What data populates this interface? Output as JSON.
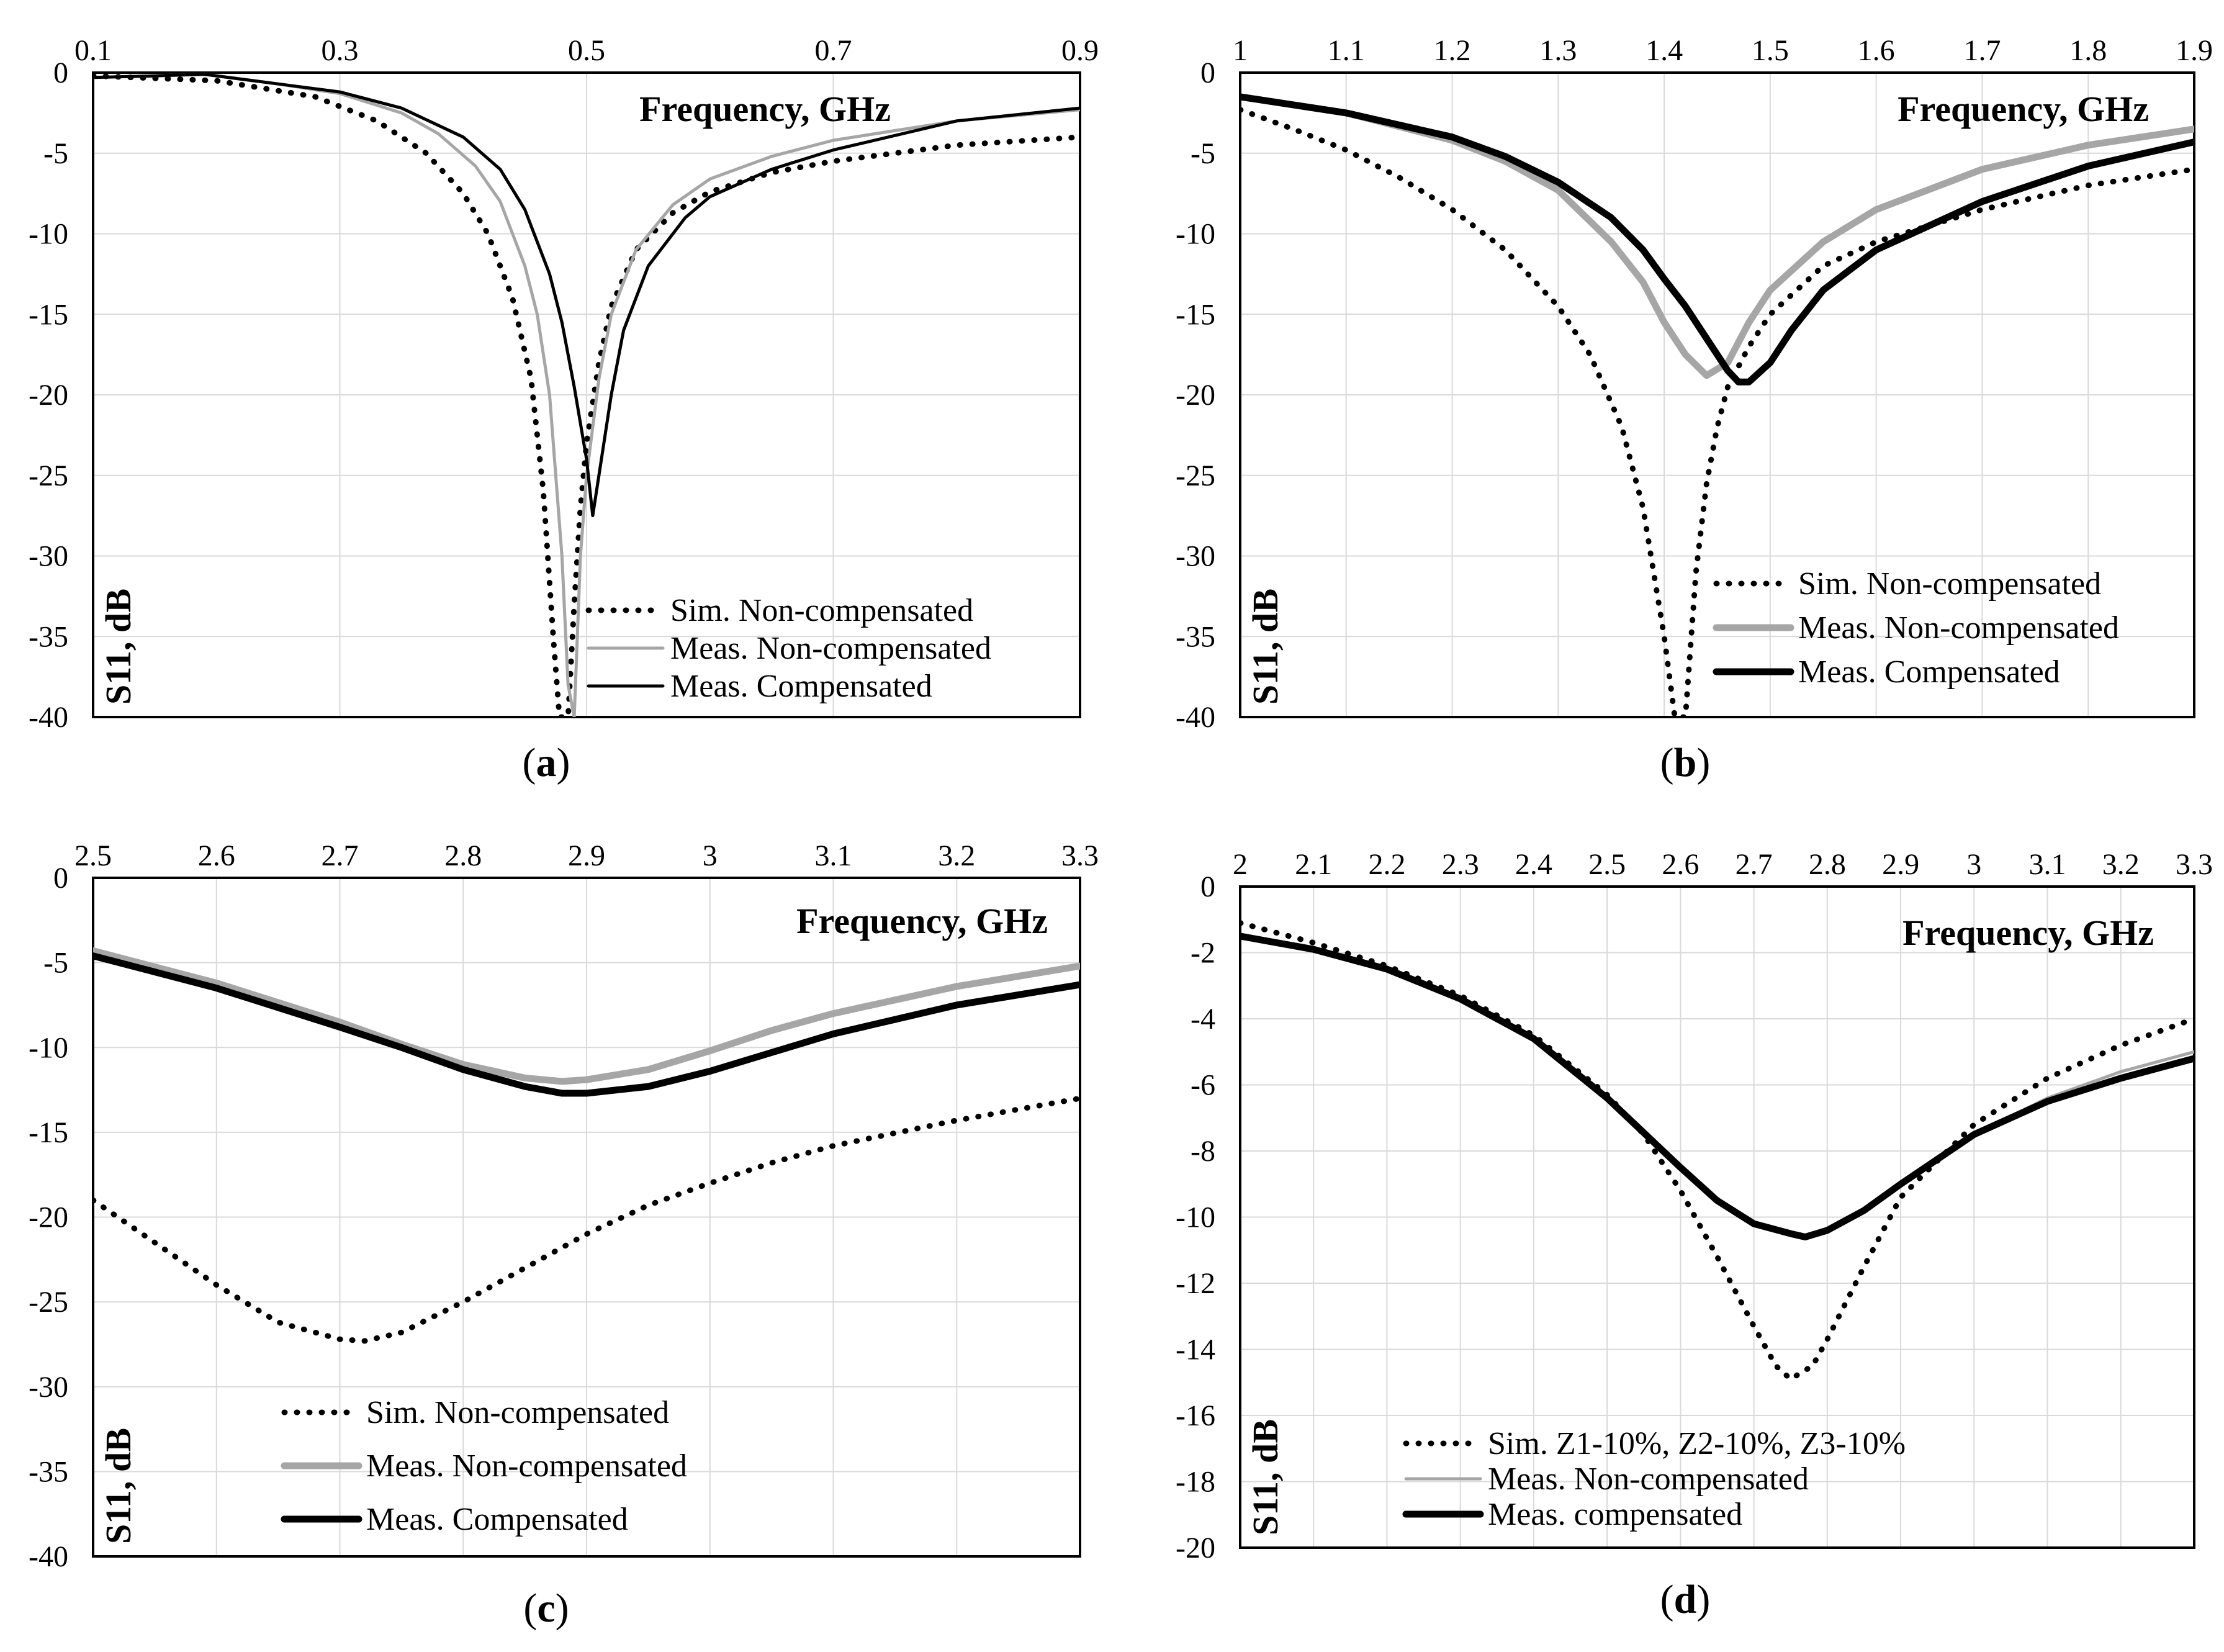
{
  "chart_data": [
    {
      "type": "line",
      "panel_label": "a",
      "xlabel": "Frequency, GHz",
      "ylabel": "S11, dB",
      "xlim": [
        0.1,
        0.9
      ],
      "ylim": [
        -40,
        0
      ],
      "xticks": [
        0.1,
        0.3,
        0.5,
        0.7,
        0.9
      ],
      "xtick_labels": [
        "0.1",
        "0.3",
        "0.5",
        "0.7",
        "0.9"
      ],
      "yticks": [
        0,
        -5,
        -10,
        -15,
        -20,
        -25,
        -30,
        -35,
        -40
      ],
      "ytick_labels": [
        "0",
        "-5",
        "-10",
        "-15",
        "-20",
        "-25",
        "-30",
        "-35",
        "-40"
      ],
      "grid": true,
      "legend_position": "bottom-right",
      "series": [
        {
          "name": "Sim. Non-compensated",
          "style": "dotted",
          "color": "#000000",
          "x": [
            0.1,
            0.2,
            0.28,
            0.33,
            0.37,
            0.4,
            0.42,
            0.44,
            0.455,
            0.465,
            0.473,
            0.478,
            0.48,
            0.485,
            0.49,
            0.495,
            0.5,
            0.51,
            0.52,
            0.54,
            0.57,
            0.6,
            0.65,
            0.7,
            0.8,
            0.9
          ],
          "y": [
            -0.2,
            -0.5,
            -1.5,
            -3,
            -5,
            -7.5,
            -10,
            -14,
            -19,
            -26,
            -35,
            -40,
            -40,
            -40,
            -33,
            -27,
            -23,
            -18,
            -14.5,
            -11,
            -8.7,
            -7.4,
            -6.2,
            -5.5,
            -4.5,
            -4
          ]
        },
        {
          "name": "Meas. Non-compensated",
          "style": "solid-thin",
          "color": "#a6a6a6",
          "x": [
            0.1,
            0.15,
            0.19,
            0.25,
            0.3,
            0.35,
            0.38,
            0.41,
            0.43,
            0.45,
            0.46,
            0.47,
            0.48,
            0.485,
            0.49,
            0.495,
            0.5,
            0.51,
            0.52,
            0.54,
            0.57,
            0.6,
            0.65,
            0.7,
            0.8,
            0.9
          ],
          "y": [
            -0.3,
            -0.2,
            -0.1,
            -0.7,
            -1.3,
            -2.5,
            -3.8,
            -5.8,
            -8,
            -12,
            -15,
            -20,
            -30,
            -38,
            -40,
            -30,
            -25,
            -19,
            -15,
            -11,
            -8.2,
            -6.6,
            -5.2,
            -4.2,
            -3,
            -2.3
          ]
        },
        {
          "name": "Meas. Compensated",
          "style": "solid-thin",
          "color": "#000000",
          "x": [
            0.1,
            0.15,
            0.19,
            0.25,
            0.3,
            0.35,
            0.4,
            0.43,
            0.45,
            0.47,
            0.48,
            0.49,
            0.5,
            0.505,
            0.51,
            0.52,
            0.53,
            0.55,
            0.58,
            0.6,
            0.65,
            0.7,
            0.8,
            0.9
          ],
          "y": [
            -0.3,
            -0.2,
            -0.1,
            -0.7,
            -1.2,
            -2.2,
            -4,
            -6,
            -8.5,
            -12.5,
            -15.5,
            -19.5,
            -24,
            -27.5,
            -25,
            -20,
            -16,
            -12,
            -9,
            -7.7,
            -6,
            -4.8,
            -3,
            -2.2
          ]
        }
      ]
    },
    {
      "type": "line",
      "panel_label": "b",
      "xlabel": "Frequency, GHz",
      "ylabel": "S11, dB",
      "xlim": [
        1,
        1.9
      ],
      "ylim": [
        -40,
        0
      ],
      "xticks": [
        1,
        1.1,
        1.2,
        1.3,
        1.4,
        1.5,
        1.6,
        1.7,
        1.8,
        1.9
      ],
      "xtick_labels": [
        "1",
        "1.1",
        "1.2",
        "1.3",
        "1.4",
        "1.5",
        "1.6",
        "1.7",
        "1.8",
        "1.9"
      ],
      "yticks": [
        0,
        -5,
        -10,
        -15,
        -20,
        -25,
        -30,
        -35,
        -40
      ],
      "ytick_labels": [
        "0",
        "-5",
        "-10",
        "-15",
        "-20",
        "-25",
        "-30",
        "-35",
        "-40"
      ],
      "grid": true,
      "legend_position": "bottom-right",
      "series": [
        {
          "name": "Sim. Non-compensated",
          "style": "dotted",
          "color": "#000000",
          "x": [
            1.0,
            1.05,
            1.1,
            1.15,
            1.2,
            1.25,
            1.3,
            1.33,
            1.36,
            1.38,
            1.4,
            1.41,
            1.42,
            1.43,
            1.44,
            1.45,
            1.46,
            1.48,
            1.5,
            1.55,
            1.6,
            1.7,
            1.8,
            1.9
          ],
          "y": [
            -2.3,
            -3.5,
            -4.8,
            -6.5,
            -8.5,
            -11,
            -14.5,
            -17.5,
            -22,
            -27,
            -35,
            -40,
            -40,
            -31,
            -25.5,
            -22,
            -19.5,
            -17,
            -15,
            -12,
            -10.5,
            -8.5,
            -7,
            -6
          ]
        },
        {
          "name": "Meas. Non-compensated",
          "style": "solid-thick",
          "color": "#a6a6a6",
          "x": [
            1.0,
            1.1,
            1.2,
            1.25,
            1.3,
            1.35,
            1.38,
            1.4,
            1.42,
            1.44,
            1.46,
            1.48,
            1.5,
            1.55,
            1.6,
            1.7,
            1.8,
            1.9
          ],
          "y": [
            -1.5,
            -2.5,
            -4.2,
            -5.5,
            -7.3,
            -10.5,
            -13,
            -15.5,
            -17.5,
            -18.8,
            -18,
            -15.5,
            -13.5,
            -10.5,
            -8.5,
            -6,
            -4.5,
            -3.5
          ]
        },
        {
          "name": "Meas. Compensated",
          "style": "solid-thick",
          "color": "#000000",
          "x": [
            1.0,
            1.1,
            1.2,
            1.25,
            1.3,
            1.35,
            1.38,
            1.4,
            1.42,
            1.44,
            1.46,
            1.47,
            1.48,
            1.5,
            1.52,
            1.55,
            1.6,
            1.7,
            1.8,
            1.9
          ],
          "y": [
            -1.5,
            -2.5,
            -4,
            -5.2,
            -6.8,
            -9,
            -11,
            -12.8,
            -14.5,
            -16.5,
            -18.5,
            -19.2,
            -19.2,
            -18,
            -16,
            -13.5,
            -11,
            -8,
            -5.8,
            -4.3
          ]
        }
      ]
    },
    {
      "type": "line",
      "panel_label": "c",
      "xlabel": "Frequency, GHz",
      "ylabel": "S11, dB",
      "xlim": [
        2.5,
        3.3
      ],
      "ylim": [
        -40,
        0
      ],
      "xticks": [
        2.5,
        2.6,
        2.7,
        2.8,
        2.9,
        3.0,
        3.1,
        3.2,
        3.3
      ],
      "xtick_labels": [
        "2.5",
        "2.6",
        "2.7",
        "2.8",
        "2.9",
        "3",
        "3.1",
        "3.2",
        "3.3"
      ],
      "yticks": [
        0,
        -5,
        -10,
        -15,
        -20,
        -25,
        -30,
        -35,
        -40
      ],
      "ytick_labels": [
        "0",
        "-5",
        "-10",
        "-15",
        "-20",
        "-25",
        "-30",
        "-35",
        "-40"
      ],
      "grid": true,
      "legend_position": "bottom-center",
      "series": [
        {
          "name": "Sim. Non-compensated",
          "style": "dotted",
          "color": "#000000",
          "x": [
            2.5,
            2.55,
            2.6,
            2.65,
            2.7,
            2.72,
            2.75,
            2.8,
            2.85,
            2.9,
            2.95,
            3.0,
            3.05,
            3.1,
            3.2,
            3.3
          ],
          "y": [
            -19,
            -21.5,
            -24,
            -26.2,
            -27.2,
            -27.3,
            -26.8,
            -25,
            -23,
            -21,
            -19.3,
            -18,
            -16.8,
            -15.8,
            -14.3,
            -13
          ]
        },
        {
          "name": "Meas. Non-compensated",
          "style": "solid-thick",
          "color": "#a6a6a6",
          "x": [
            2.5,
            2.6,
            2.7,
            2.75,
            2.8,
            2.85,
            2.88,
            2.9,
            2.95,
            3.0,
            3.05,
            3.1,
            3.2,
            3.3
          ],
          "y": [
            -4.3,
            -6.2,
            -8.5,
            -9.8,
            -11,
            -11.8,
            -12,
            -11.9,
            -11.3,
            -10.2,
            -9,
            -8,
            -6.4,
            -5.2
          ]
        },
        {
          "name": "Meas. Compensated",
          "style": "solid-thick",
          "color": "#000000",
          "x": [
            2.5,
            2.6,
            2.7,
            2.75,
            2.8,
            2.85,
            2.88,
            2.9,
            2.95,
            3.0,
            3.05,
            3.1,
            3.2,
            3.3
          ],
          "y": [
            -4.6,
            -6.5,
            -8.8,
            -10,
            -11.3,
            -12.3,
            -12.7,
            -12.7,
            -12.3,
            -11.4,
            -10.3,
            -9.2,
            -7.5,
            -6.3
          ]
        }
      ]
    },
    {
      "type": "line",
      "panel_label": "d",
      "xlabel": "Frequency, GHz",
      "ylabel": "S11, dB",
      "xlim": [
        2,
        3.3
      ],
      "ylim": [
        -20,
        0
      ],
      "xticks": [
        2,
        2.1,
        2.2,
        2.3,
        2.4,
        2.5,
        2.6,
        2.7,
        2.8,
        2.9,
        3.0,
        3.1,
        3.2,
        3.3
      ],
      "xtick_labels": [
        "2",
        "2.1",
        "2.2",
        "2.3",
        "2.4",
        "2.5",
        "2.6",
        "2.7",
        "2.8",
        "2.9",
        "3",
        "3.1",
        "3.2",
        "3.3"
      ],
      "yticks": [
        0,
        -2,
        -4,
        -6,
        -8,
        -10,
        -12,
        -14,
        -16,
        -18,
        -20
      ],
      "ytick_labels": [
        "0",
        "-2",
        "-4",
        "-6",
        "-8",
        "-10",
        "-12",
        "-14",
        "-16",
        "-18",
        "-20"
      ],
      "grid": true,
      "legend_position": "bottom-right",
      "series": [
        {
          "name": "Sim. Z1-10%, Z2-10%, Z3-10%",
          "style": "dotted",
          "color": "#000000",
          "x": [
            2.0,
            2.1,
            2.2,
            2.3,
            2.4,
            2.5,
            2.55,
            2.6,
            2.65,
            2.7,
            2.73,
            2.75,
            2.78,
            2.8,
            2.85,
            2.9,
            3.0,
            3.1,
            3.2,
            3.3
          ],
          "y": [
            -1.1,
            -1.7,
            -2.4,
            -3.3,
            -4.5,
            -6.3,
            -7.5,
            -9.2,
            -11.2,
            -13.3,
            -14.5,
            -14.9,
            -14.5,
            -13.7,
            -11.5,
            -9.4,
            -7.2,
            -5.8,
            -4.8,
            -4
          ]
        },
        {
          "name": "Meas. Non-compensated",
          "style": "solid-thin",
          "color": "#a6a6a6",
          "x": [
            2.0,
            2.1,
            2.2,
            2.3,
            2.4,
            2.5,
            2.6,
            2.65,
            2.7,
            2.75,
            2.77,
            2.8,
            2.85,
            2.9,
            3.0,
            3.1,
            3.2,
            3.3
          ],
          "y": [
            -1.5,
            -1.9,
            -2.5,
            -3.4,
            -4.6,
            -6.4,
            -8.5,
            -9.5,
            -10.2,
            -10.5,
            -10.6,
            -10.4,
            -9.8,
            -9,
            -7.5,
            -6.4,
            -5.6,
            -5
          ]
        },
        {
          "name": "Meas. compensated",
          "style": "solid-thick",
          "color": "#000000",
          "x": [
            2.0,
            2.1,
            2.2,
            2.3,
            2.4,
            2.5,
            2.6,
            2.65,
            2.7,
            2.75,
            2.77,
            2.8,
            2.85,
            2.9,
            3.0,
            3.1,
            3.2,
            3.3
          ],
          "y": [
            -1.5,
            -1.9,
            -2.5,
            -3.4,
            -4.6,
            -6.4,
            -8.5,
            -9.5,
            -10.2,
            -10.5,
            -10.6,
            -10.4,
            -9.8,
            -9,
            -7.5,
            -6.5,
            -5.8,
            -5.2
          ]
        }
      ]
    }
  ]
}
